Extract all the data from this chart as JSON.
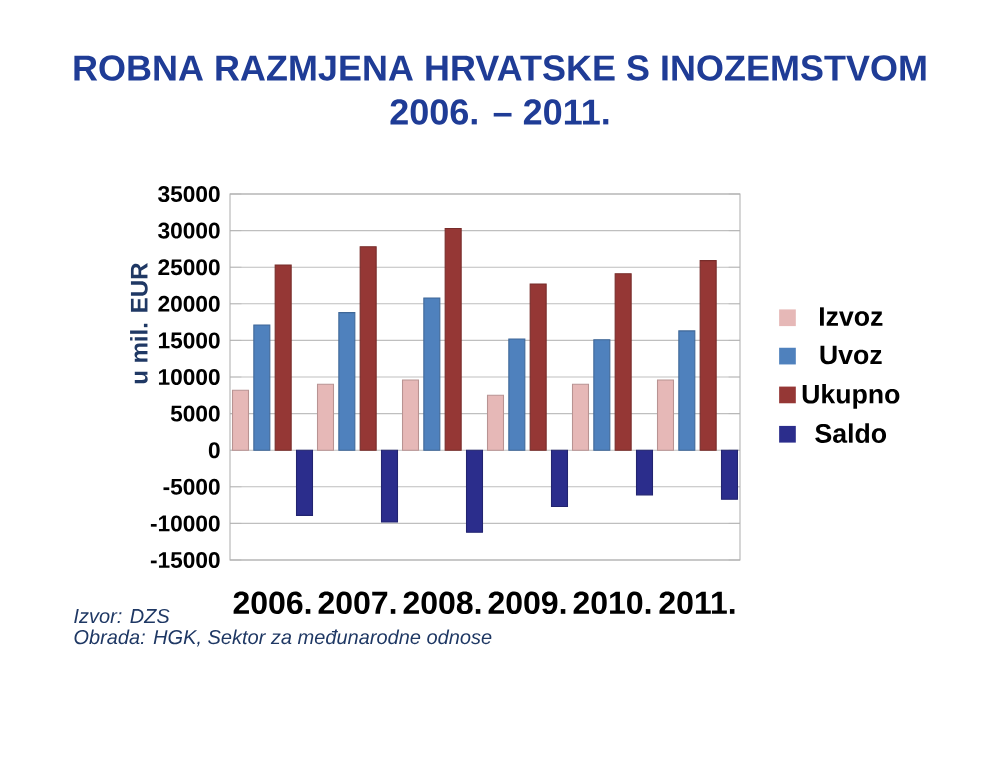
{
  "chart_data": {
    "type": "bar",
    "title": "ROBNA RAZMJENA HRVATSKE S INOZEMSTVOM",
    "subtitle": "2006. – 2011.",
    "ylabel": "u mil. EUR",
    "categories": [
      "2006.",
      "2007.",
      "2008.",
      "2009.",
      "2010.",
      "2011."
    ],
    "series": [
      {
        "name": "Izvoz",
        "color": "#e6b8b7",
        "values": [
          8200,
          9000,
          9600,
          7500,
          9000,
          9600
        ]
      },
      {
        "name": "Uvoz",
        "color": "#4f81bd",
        "values": [
          17100,
          18800,
          20800,
          15200,
          15100,
          16300
        ]
      },
      {
        "name": "Ukupno",
        "color": "#953735",
        "values": [
          25300,
          27800,
          30300,
          22700,
          24100,
          25900
        ]
      },
      {
        "name": "Saldo",
        "color": "#2b2d8c",
        "values": [
          -8900,
          -9800,
          -11200,
          -7700,
          -6100,
          -6700
        ]
      }
    ],
    "ylim": [
      -15000,
      35000
    ],
    "yticks": [
      -15000,
      -10000,
      -5000,
      0,
      5000,
      10000,
      15000,
      20000,
      25000,
      30000,
      35000
    ],
    "grid": "y",
    "legend": "right",
    "annotations": [
      "Izvor: DZS",
      "Obrada: HGK, Sektor za međunarodne odnose"
    ]
  }
}
